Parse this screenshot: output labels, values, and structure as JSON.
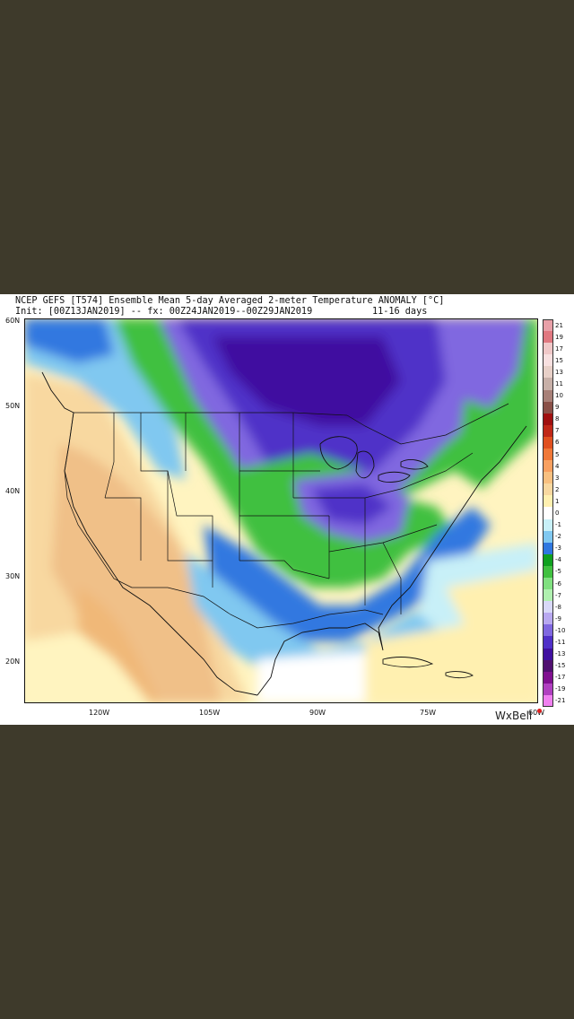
{
  "header": {
    "line1": "NCEP GEFS [T574] Ensemble Mean 5-day Averaged 2-meter Temperature ANOMALY [°C]",
    "line2": "Init: [00Z13JAN2019] -- fx: 00Z24JAN2019--00Z29JAN2019",
    "range": "11-16 days"
  },
  "axes": {
    "latitudes": [
      "60N",
      "50N",
      "40N",
      "30N",
      "20N"
    ],
    "longitudes": [
      "120W",
      "105W",
      "90W",
      "75W",
      "60W"
    ]
  },
  "colorbar": {
    "labels": [
      "21",
      "19",
      "17",
      "15",
      "13",
      "11",
      "10",
      "9",
      "8",
      "7",
      "6",
      "5",
      "4",
      "3",
      "2",
      "1",
      "0",
      "-1",
      "-2",
      "-3",
      "-4",
      "-5",
      "-6",
      "-7",
      "-8",
      "-9",
      "-10",
      "-11",
      "-13",
      "-15",
      "-17",
      "-19",
      "-21"
    ],
    "colors": [
      "#e8a0a8",
      "#e07880",
      "#f0c8c8",
      "#f8e0e0",
      "#e8d0c8",
      "#c8b0a8",
      "#a88078",
      "#8a5048",
      "#a01010",
      "#c02818",
      "#e05020",
      "#f07838",
      "#f8a060",
      "#f8c080",
      "#f8d8a0",
      "#fff0b0",
      "#ffffff",
      "#c8f0f8",
      "#80c8f0",
      "#3078e0",
      "#10a020",
      "#40c040",
      "#80e080",
      "#b0f0b0",
      "#d8d8f8",
      "#b8a8f0",
      "#8068e0",
      "#5030c8",
      "#4010a0",
      "#501070",
      "#801090",
      "#b040c0",
      "#f080f0"
    ]
  },
  "brand": "WxBell"
}
